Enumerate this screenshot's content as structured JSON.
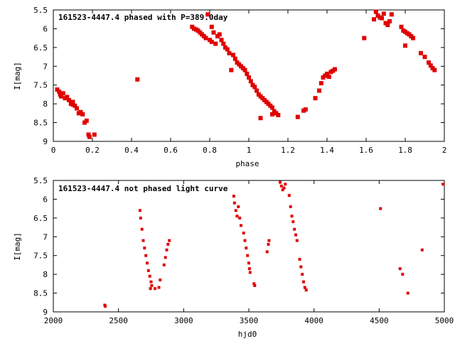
{
  "chart_data": [
    {
      "type": "scatter",
      "title": "161523-4447.4 phased with P=389.0day",
      "xlabel": "phase",
      "ylabel": "I[mag]",
      "xlim": [
        0,
        2
      ],
      "ylim": [
        9,
        5.5
      ],
      "y_inverted": true,
      "x_ticks": [
        "0",
        "0.2",
        "0.4",
        "0.6",
        "0.8",
        "1",
        "1.2",
        "1.4",
        "1.6",
        "1.8",
        "2"
      ],
      "y_ticks": [
        "5.5",
        "6",
        "6.5",
        "7",
        "7.5",
        "8",
        "8.5",
        "9"
      ],
      "color": "#e00000",
      "series": [
        {
          "points": [
            [
              0.02,
              7.62
            ],
            [
              0.03,
              7.68
            ],
            [
              0.035,
              7.75
            ],
            [
              0.04,
              7.8
            ],
            [
              0.05,
              7.72
            ],
            [
              0.06,
              7.85
            ],
            [
              0.07,
              7.82
            ],
            [
              0.08,
              7.9
            ],
            [
              0.09,
              8.0
            ],
            [
              0.1,
              8.02
            ],
            [
              0.11,
              8.05
            ],
            [
              0.1,
              7.95
            ],
            [
              0.12,
              8.12
            ],
            [
              0.13,
              8.25
            ],
            [
              0.14,
              8.22
            ],
            [
              0.15,
              8.28
            ],
            [
              0.16,
              8.5
            ],
            [
              0.17,
              8.45
            ],
            [
              0.18,
              8.82
            ],
            [
              0.185,
              8.88
            ],
            [
              0.21,
              8.82
            ],
            [
              0.43,
              7.35
            ],
            [
              0.71,
              5.95
            ],
            [
              0.72,
              6.0
            ],
            [
              0.73,
              6.02
            ],
            [
              0.74,
              6.05
            ],
            [
              0.75,
              6.1
            ],
            [
              0.76,
              6.15
            ],
            [
              0.77,
              6.2
            ],
            [
              0.78,
              6.25
            ],
            [
              0.79,
              5.62
            ],
            [
              0.8,
              6.3
            ],
            [
              0.81,
              5.95
            ],
            [
              0.81,
              6.35
            ],
            [
              0.82,
              6.1
            ],
            [
              0.83,
              6.4
            ],
            [
              0.84,
              6.2
            ],
            [
              0.85,
              6.15
            ],
            [
              0.86,
              6.3
            ],
            [
              0.87,
              6.4
            ],
            [
              0.88,
              6.5
            ],
            [
              0.89,
              6.55
            ],
            [
              0.9,
              6.65
            ],
            [
              0.91,
              7.1
            ],
            [
              0.92,
              6.7
            ],
            [
              0.93,
              6.8
            ],
            [
              0.94,
              6.9
            ],
            [
              0.95,
              6.95
            ],
            [
              0.96,
              7.0
            ],
            [
              0.97,
              7.05
            ],
            [
              0.98,
              7.1
            ],
            [
              0.99,
              7.2
            ],
            [
              1.0,
              7.3
            ],
            [
              1.01,
              7.4
            ],
            [
              1.02,
              7.5
            ],
            [
              1.03,
              7.55
            ],
            [
              1.04,
              7.65
            ],
            [
              1.05,
              7.75
            ],
            [
              1.06,
              7.8
            ],
            [
              1.07,
              7.85
            ],
            [
              1.08,
              7.9
            ],
            [
              1.09,
              7.95
            ],
            [
              1.1,
              8.0
            ],
            [
              1.11,
              8.05
            ],
            [
              1.12,
              8.1
            ],
            [
              1.13,
              8.2
            ],
            [
              1.14,
              8.25
            ],
            [
              1.15,
              8.3
            ],
            [
              1.12,
              8.28
            ],
            [
              1.06,
              8.38
            ],
            [
              1.25,
              8.35
            ],
            [
              1.28,
              8.18
            ],
            [
              1.29,
              8.15
            ],
            [
              1.34,
              7.85
            ],
            [
              1.36,
              7.65
            ],
            [
              1.37,
              7.45
            ],
            [
              1.38,
              7.3
            ],
            [
              1.39,
              7.25
            ],
            [
              1.4,
              7.2
            ],
            [
              1.41,
              7.28
            ],
            [
              1.42,
              7.15
            ],
            [
              1.43,
              7.12
            ],
            [
              1.44,
              7.08
            ],
            [
              1.59,
              6.25
            ],
            [
              1.64,
              5.75
            ],
            [
              1.65,
              5.55
            ],
            [
              1.66,
              5.65
            ],
            [
              1.67,
              5.7
            ],
            [
              1.68,
              5.72
            ],
            [
              1.69,
              5.6
            ],
            [
              1.7,
              5.85
            ],
            [
              1.71,
              5.9
            ],
            [
              1.72,
              5.8
            ],
            [
              1.73,
              5.62
            ],
            [
              1.78,
              5.95
            ],
            [
              1.79,
              6.05
            ],
            [
              1.8,
              6.08
            ],
            [
              1.81,
              6.12
            ],
            [
              1.82,
              6.15
            ],
            [
              1.83,
              6.2
            ],
            [
              1.84,
              6.25
            ],
            [
              1.8,
              6.45
            ],
            [
              1.88,
              6.65
            ],
            [
              1.9,
              6.75
            ],
            [
              1.92,
              6.9
            ],
            [
              1.93,
              6.98
            ],
            [
              1.94,
              7.05
            ],
            [
              1.95,
              7.1
            ]
          ]
        }
      ]
    },
    {
      "type": "scatter",
      "title": "161523-4447.4 not phased light curve",
      "xlabel": "hjd0",
      "ylabel": "I[mag]",
      "xlim": [
        2000,
        5000
      ],
      "ylim": [
        9,
        5.5
      ],
      "y_inverted": true,
      "x_ticks": [
        "2000",
        "2500",
        "3000",
        "3500",
        "4000",
        "4500",
        "5000"
      ],
      "y_ticks": [
        "5.5",
        "6",
        "6.5",
        "7",
        "7.5",
        "8",
        "8.5",
        "9"
      ],
      "color": "#e00000",
      "series": [
        {
          "points": [
            [
              2395,
              8.82
            ],
            [
              2398,
              8.85
            ],
            [
              2665,
              6.3
            ],
            [
              2670,
              6.5
            ],
            [
              2680,
              6.8
            ],
            [
              2690,
              7.1
            ],
            [
              2700,
              7.3
            ],
            [
              2710,
              7.5
            ],
            [
              2720,
              7.7
            ],
            [
              2730,
              7.9
            ],
            [
              2740,
              8.05
            ],
            [
              2750,
              8.2
            ],
            [
              2755,
              8.3
            ],
            [
              2745,
              8.38
            ],
            [
              2780,
              8.38
            ],
            [
              2810,
              8.35
            ],
            [
              2820,
              8.15
            ],
            [
              2850,
              7.75
            ],
            [
              2860,
              7.55
            ],
            [
              2870,
              7.35
            ],
            [
              2880,
              7.2
            ],
            [
              2890,
              7.1
            ],
            [
              3385,
              5.92
            ],
            [
              3390,
              6.1
            ],
            [
              3400,
              6.3
            ],
            [
              3410,
              6.45
            ],
            [
              3420,
              6.2
            ],
            [
              3430,
              6.5
            ],
            [
              3440,
              6.7
            ],
            [
              3460,
              6.9
            ],
            [
              3470,
              7.1
            ],
            [
              3480,
              7.3
            ],
            [
              3490,
              7.5
            ],
            [
              3500,
              7.7
            ],
            [
              3505,
              7.85
            ],
            [
              3510,
              7.95
            ],
            [
              3540,
              8.25
            ],
            [
              3545,
              8.3
            ],
            [
              3640,
              7.4
            ],
            [
              3650,
              7.2
            ],
            [
              3655,
              7.1
            ],
            [
              3740,
              5.55
            ],
            [
              3750,
              5.65
            ],
            [
              3760,
              5.75
            ],
            [
              3770,
              5.7
            ],
            [
              3780,
              5.6
            ],
            [
              3810,
              5.9
            ],
            [
              3820,
              6.2
            ],
            [
              3830,
              6.45
            ],
            [
              3840,
              6.6
            ],
            [
              3850,
              6.8
            ],
            [
              3860,
              6.95
            ],
            [
              3870,
              7.1
            ],
            [
              3890,
              7.6
            ],
            [
              3900,
              7.8
            ],
            [
              3910,
              8.0
            ],
            [
              3920,
              8.2
            ],
            [
              3930,
              8.35
            ],
            [
              3940,
              8.42
            ],
            [
              4510,
              6.25
            ],
            [
              4660,
              7.85
            ],
            [
              4680,
              8.0
            ],
            [
              4720,
              8.5
            ],
            [
              4830,
              7.35
            ],
            [
              4990,
              5.6
            ]
          ]
        }
      ]
    }
  ]
}
